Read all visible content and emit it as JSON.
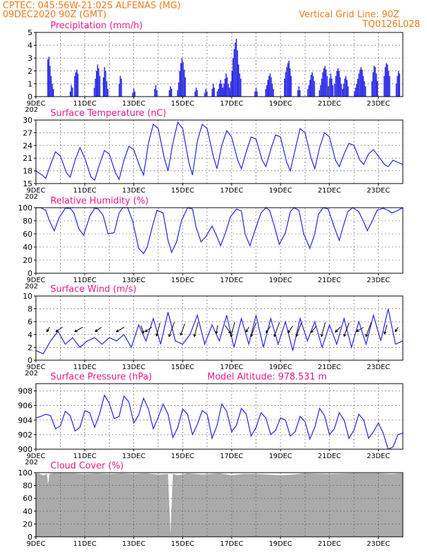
{
  "header": {
    "line1": "CPTEC:   045:56W-21:02S  ALFENAS (MG)",
    "line2": "09DEC2020 90Z (GMT)",
    "grid_note": "Vertical Grid Line: 90Z",
    "code": "TQ0126L028"
  },
  "colors": {
    "header": "#f07a18",
    "title": "#e8188a",
    "series": "#3030e8",
    "cloud": "#aaaaaa"
  },
  "x_ticks": [
    "9DEC",
    "11DEC",
    "13DEC",
    "15DEC",
    "17DEC",
    "19DEC",
    "21DEC",
    "23DEC"
  ],
  "year_stub": "202",
  "chart_data": [
    {
      "type": "bar",
      "title": "Precipitation (mm/h)",
      "ylim": [
        0,
        5
      ],
      "yticks": [
        "0",
        "1",
        "2",
        "3",
        "4",
        "5"
      ],
      "grid": true,
      "x_range_days": [
        0,
        15
      ],
      "events": [
        {
          "t": 0.6,
          "values": [
            2.9,
            3.1,
            2.4,
            1.6,
            1.0,
            0.6
          ]
        },
        {
          "t": 1.45,
          "values": [
            0.4,
            0.9,
            0.7
          ]
        },
        {
          "t": 1.65,
          "values": [
            1.6,
            1.9,
            2.1,
            1.8
          ]
        },
        {
          "t": 2.5,
          "values": [
            0.7,
            1.4,
            2.0,
            2.5,
            2.2,
            1.6
          ]
        },
        {
          "t": 2.85,
          "values": [
            1.5,
            2.3,
            2.0,
            1.2,
            0.6
          ]
        },
        {
          "t": 3.45,
          "values": [
            1.0,
            1.6,
            1.4
          ]
        },
        {
          "t": 4.0,
          "values": [
            0.3,
            0.6,
            0.4
          ]
        },
        {
          "t": 4.9,
          "values": [
            0.6,
            0.9,
            0.5
          ]
        },
        {
          "t": 5.5,
          "values": [
            0.5,
            0.8,
            0.6
          ]
        },
        {
          "t": 5.95,
          "values": [
            0.5,
            1.1,
            2.0,
            2.6,
            3.0,
            2.7,
            2.1,
            1.5
          ]
        },
        {
          "t": 6.55,
          "values": [
            0.4,
            0.7,
            0.5
          ]
        },
        {
          "t": 6.95,
          "values": [
            0.3,
            0.6,
            0.4
          ]
        },
        {
          "t": 7.25,
          "values": [
            0.6,
            1.0,
            0.7
          ]
        },
        {
          "t": 7.55,
          "values": [
            0.4,
            0.6,
            1.0,
            1.3,
            1.0,
            0.7,
            0.5
          ]
        },
        {
          "t": 7.8,
          "values": [
            0.6,
            1.0,
            1.4,
            1.8,
            1.5,
            1.0,
            0.7,
            0.4
          ]
        },
        {
          "t": 8.15,
          "values": [
            0.6,
            1.2,
            2.0,
            3.0,
            3.7,
            4.2,
            4.5,
            3.6,
            2.5,
            1.8,
            1.4
          ]
        },
        {
          "t": 9.0,
          "values": [
            0.4,
            0.7,
            0.4
          ]
        },
        {
          "t": 9.55,
          "values": [
            0.6,
            0.9,
            1.3,
            1.6,
            1.8,
            1.5,
            1.0,
            0.6
          ]
        },
        {
          "t": 10.3,
          "values": [
            1.4,
            1.9,
            2.3,
            2.6,
            2.8,
            2.2,
            1.6
          ]
        },
        {
          "t": 10.75,
          "values": [
            0.5,
            0.8,
            0.5
          ]
        },
        {
          "t": 11.25,
          "values": [
            0.6,
            0.9,
            1.3,
            1.7,
            1.9,
            1.6,
            1.2
          ]
        },
        {
          "t": 11.75,
          "values": [
            0.5,
            0.9,
            1.4,
            1.9,
            2.2,
            2.4,
            2.1,
            1.6
          ]
        },
        {
          "t": 12.05,
          "values": [
            0.8,
            1.4,
            1.8,
            1.4,
            0.9
          ]
        },
        {
          "t": 12.35,
          "values": [
            1.0,
            1.6,
            2.0,
            2.2,
            2.0,
            1.5,
            1.0
          ]
        },
        {
          "t": 12.65,
          "values": [
            0.6,
            1.0,
            1.4,
            1.6,
            1.3,
            0.8
          ]
        },
        {
          "t": 13.25,
          "values": [
            0.4,
            0.7,
            1.0,
            1.4,
            1.8,
            2.1,
            2.3,
            2.1,
            1.6,
            1.2,
            0.8
          ]
        },
        {
          "t": 13.85,
          "values": [
            1.2,
            1.9,
            2.4,
            2.3,
            1.8,
            1.2
          ]
        },
        {
          "t": 14.35,
          "values": [
            1.6,
            2.3,
            2.6,
            2.5,
            2.0,
            1.6
          ]
        },
        {
          "t": 14.8,
          "values": [
            1.0,
            1.6,
            2.0,
            1.8
          ]
        }
      ]
    },
    {
      "type": "line",
      "title": "Surface Temperature (nC)",
      "ylim": [
        15,
        30
      ],
      "yticks": [
        "15",
        "18",
        "21",
        "24",
        "27",
        "30"
      ],
      "grid": true,
      "x": [
        0,
        0.25,
        0.4,
        0.6,
        0.8,
        1.0,
        1.25,
        1.4,
        1.6,
        1.8,
        2.0,
        2.25,
        2.4,
        2.6,
        2.8,
        3.0,
        3.25,
        3.4,
        3.6,
        3.8,
        4.0,
        4.25,
        4.4,
        4.6,
        4.8,
        5.0,
        5.25,
        5.4,
        5.6,
        5.8,
        6.0,
        6.25,
        6.4,
        6.6,
        6.8,
        7.0,
        7.25,
        7.4,
        7.6,
        7.8,
        8.0,
        8.25,
        8.4,
        8.6,
        8.8,
        9.0,
        9.25,
        9.4,
        9.6,
        9.8,
        10.0,
        10.25,
        10.4,
        10.6,
        10.8,
        11.0,
        11.25,
        11.4,
        11.6,
        11.8,
        12.0,
        12.25,
        12.4,
        12.6,
        12.8,
        13.0,
        13.25,
        13.4,
        13.6,
        13.8,
        14.0,
        14.25,
        14.4,
        14.6,
        14.8,
        15.0
      ],
      "values": [
        18.0,
        17.0,
        16.2,
        19.5,
        22.5,
        21.5,
        17.5,
        16.5,
        20.5,
        23.5,
        21.0,
        16.5,
        15.8,
        19.5,
        22.8,
        22.0,
        17.5,
        16.0,
        20.5,
        23.8,
        23.0,
        19.0,
        17.0,
        24.5,
        29.0,
        28.0,
        21.0,
        18.0,
        24.5,
        29.5,
        28.0,
        20.0,
        17.0,
        25.0,
        29.0,
        28.0,
        21.5,
        18.5,
        24.0,
        27.5,
        26.0,
        20.5,
        18.5,
        22.5,
        26.0,
        25.5,
        20.5,
        19.0,
        23.0,
        26.5,
        26.0,
        20.0,
        18.0,
        23.0,
        28.0,
        27.0,
        21.0,
        18.5,
        23.5,
        27.0,
        26.0,
        20.5,
        19.0,
        22.0,
        24.5,
        24.0,
        20.5,
        19.5,
        22.0,
        23.0,
        21.5,
        19.5,
        19.0,
        20.5,
        20.0,
        19.5
      ]
    },
    {
      "type": "line",
      "title": "Relative Humidity (%)",
      "ylim": [
        0,
        100
      ],
      "yticks": [
        "0",
        "20",
        "40",
        "60",
        "80",
        "100"
      ],
      "grid": true,
      "x": [
        0,
        0.2,
        0.4,
        0.55,
        0.75,
        0.95,
        1.2,
        1.4,
        1.55,
        1.75,
        1.95,
        2.2,
        2.4,
        2.55,
        2.75,
        2.95,
        3.2,
        3.4,
        3.55,
        3.75,
        3.95,
        4.2,
        4.4,
        4.55,
        4.75,
        4.95,
        5.2,
        5.4,
        5.55,
        5.75,
        5.95,
        6.2,
        6.4,
        6.55,
        6.75,
        6.95,
        7.2,
        7.4,
        7.55,
        7.75,
        7.95,
        8.2,
        8.4,
        8.55,
        8.75,
        8.95,
        9.2,
        9.4,
        9.55,
        9.75,
        9.95,
        10.2,
        10.4,
        10.55,
        10.75,
        10.95,
        11.2,
        11.4,
        11.55,
        11.75,
        11.95,
        12.2,
        12.4,
        12.55,
        12.75,
        12.95,
        13.2,
        13.4,
        13.55,
        13.75,
        13.95,
        14.2,
        14.4,
        14.55,
        14.75,
        15.0
      ],
      "values": [
        100,
        100,
        96,
        80,
        65,
        85,
        99,
        99,
        92,
        68,
        58,
        87,
        99,
        98,
        88,
        60,
        62,
        92,
        100,
        100,
        80,
        38,
        30,
        40,
        70,
        96,
        92,
        50,
        32,
        48,
        80,
        100,
        98,
        70,
        48,
        56,
        72,
        56,
        42,
        62,
        86,
        98,
        95,
        60,
        42,
        65,
        92,
        100,
        96,
        72,
        44,
        62,
        94,
        100,
        96,
        60,
        38,
        60,
        90,
        100,
        98,
        70,
        50,
        70,
        94,
        100,
        94,
        78,
        65,
        80,
        96,
        99,
        96,
        92,
        95,
        100
      ]
    },
    {
      "type": "line",
      "title": "Surface Wind (m/s)",
      "ylim": [
        0,
        10
      ],
      "yticks": [
        "0",
        "2",
        "4",
        "6",
        "8",
        "10"
      ],
      "grid": true,
      "x": [
        0,
        0.3,
        0.6,
        0.9,
        1.2,
        1.5,
        1.8,
        2.1,
        2.4,
        2.7,
        3.0,
        3.3,
        3.6,
        3.9,
        4.2,
        4.5,
        4.8,
        5.1,
        5.4,
        5.7,
        6.0,
        6.3,
        6.6,
        6.9,
        7.2,
        7.5,
        7.8,
        8.1,
        8.4,
        8.7,
        9.0,
        9.3,
        9.6,
        9.9,
        10.2,
        10.5,
        10.8,
        11.1,
        11.4,
        11.7,
        12.0,
        12.3,
        12.6,
        12.9,
        13.2,
        13.5,
        13.8,
        14.1,
        14.4,
        14.7,
        15.0
      ],
      "values": [
        1.5,
        1.0,
        3.0,
        4.5,
        2.5,
        3.5,
        2.0,
        3.0,
        3.5,
        2.5,
        3.5,
        3.0,
        4.0,
        2.0,
        5.5,
        3.0,
        6.5,
        2.5,
        7.5,
        3.0,
        2.5,
        4.0,
        7.0,
        2.5,
        5.5,
        3.0,
        7.0,
        2.0,
        6.5,
        2.5,
        7.0,
        2.0,
        6.5,
        2.5,
        6.0,
        1.5,
        6.5,
        3.0,
        6.0,
        2.0,
        5.5,
        2.5,
        6.5,
        2.0,
        6.0,
        2.5,
        7.0,
        3.0,
        8.0,
        2.5,
        3.0
      ],
      "arrows": [
        {
          "t": 0.5,
          "speed": 2.0,
          "dir_deg": 210
        },
        {
          "t": 0.95,
          "speed": 3.0,
          "dir_deg": 235
        },
        {
          "t": 1.75,
          "speed": 3.4,
          "dir_deg": 240
        },
        {
          "t": 2.55,
          "speed": 2.8,
          "dir_deg": 235
        },
        {
          "t": 3.45,
          "speed": 3.4,
          "dir_deg": 240
        },
        {
          "t": 4.35,
          "speed": 3.0,
          "dir_deg": 160
        },
        {
          "t": 4.6,
          "speed": 3.0,
          "dir_deg": 235
        },
        {
          "t": 5.0,
          "speed": 5.0,
          "dir_deg": 195
        },
        {
          "t": 5.55,
          "speed": 5.6,
          "dir_deg": 200
        },
        {
          "t": 6.0,
          "speed": 4.5,
          "dir_deg": 200
        },
        {
          "t": 6.55,
          "speed": 5.4,
          "dir_deg": 195
        },
        {
          "t": 7.4,
          "speed": 3.2,
          "dir_deg": 190
        },
        {
          "t": 7.85,
          "speed": 3.6,
          "dir_deg": 145
        },
        {
          "t": 8.05,
          "speed": 5.5,
          "dir_deg": 195
        },
        {
          "t": 8.65,
          "speed": 2.2,
          "dir_deg": 210
        },
        {
          "t": 8.9,
          "speed": 5.5,
          "dir_deg": 200
        },
        {
          "t": 9.5,
          "speed": 3.0,
          "dir_deg": 215
        },
        {
          "t": 9.85,
          "speed": 5.6,
          "dir_deg": 200
        },
        {
          "t": 10.4,
          "speed": 3.0,
          "dir_deg": 215
        },
        {
          "t": 10.75,
          "speed": 5.5,
          "dir_deg": 200
        },
        {
          "t": 11.35,
          "speed": 3.0,
          "dir_deg": 220
        },
        {
          "t": 11.75,
          "speed": 5.4,
          "dir_deg": 195
        },
        {
          "t": 12.35,
          "speed": 2.8,
          "dir_deg": 225
        },
        {
          "t": 12.7,
          "speed": 5.4,
          "dir_deg": 200
        },
        {
          "t": 13.25,
          "speed": 3.0,
          "dir_deg": 240
        },
        {
          "t": 13.6,
          "speed": 5.6,
          "dir_deg": 200
        },
        {
          "t": 14.3,
          "speed": 3.5,
          "dir_deg": 195
        },
        {
          "t": 14.75,
          "speed": 2.0,
          "dir_deg": 215
        }
      ]
    },
    {
      "type": "line",
      "title": "Surface Pressure (hPa)",
      "subtitle": "Model Altitude: 978.531  m",
      "ylim": [
        900,
        909
      ],
      "yticks": [
        "900",
        "902",
        "904",
        "906",
        "908"
      ],
      "grid": true,
      "x": [
        0,
        0.2,
        0.4,
        0.6,
        0.8,
        1.0,
        1.2,
        1.4,
        1.6,
        1.8,
        2.0,
        2.2,
        2.4,
        2.6,
        2.8,
        3.0,
        3.2,
        3.4,
        3.6,
        3.8,
        4.0,
        4.2,
        4.4,
        4.6,
        4.8,
        5.0,
        5.2,
        5.4,
        5.6,
        5.8,
        6.0,
        6.2,
        6.4,
        6.6,
        6.8,
        7.0,
        7.2,
        7.4,
        7.6,
        7.8,
        8.0,
        8.2,
        8.4,
        8.6,
        8.8,
        9.0,
        9.2,
        9.4,
        9.6,
        9.8,
        10.0,
        10.2,
        10.4,
        10.6,
        10.8,
        11.0,
        11.2,
        11.4,
        11.6,
        11.8,
        12.0,
        12.2,
        12.4,
        12.6,
        12.8,
        13.0,
        13.2,
        13.4,
        13.6,
        13.8,
        14.0,
        14.2,
        14.4,
        14.6,
        14.8,
        15.0
      ],
      "values": [
        904.3,
        904.5,
        904.8,
        904.6,
        902.8,
        903.2,
        905.2,
        904.6,
        902.5,
        903.0,
        905.3,
        905.0,
        903.0,
        904.8,
        907.4,
        906.3,
        904.2,
        904.5,
        907.3,
        906.5,
        903.6,
        904.7,
        907.0,
        905.5,
        902.8,
        904.4,
        906.2,
        904.8,
        901.6,
        903.0,
        905.5,
        904.8,
        902.0,
        903.4,
        905.3,
        904.8,
        901.5,
        903.2,
        906.2,
        905.2,
        902.4,
        903.3,
        905.6,
        904.8,
        901.8,
        903.0,
        905.0,
        904.3,
        902.0,
        902.6,
        904.3,
        904.0,
        901.8,
        902.4,
        904.5,
        903.8,
        901.4,
        903.0,
        905.6,
        904.6,
        902.0,
        902.8,
        905.0,
        904.0,
        901.5,
        902.6,
        904.8,
        904.0,
        901.5,
        902.4,
        903.6,
        902.2,
        899.5,
        900.3,
        902.0,
        902.2
      ]
    },
    {
      "type": "area",
      "title": "Cloud Cover (%)",
      "ylim": [
        0,
        100
      ],
      "yticks": [
        "0",
        "20",
        "40",
        "60",
        "80",
        "100"
      ],
      "grid": true,
      "x": [
        0,
        0.1,
        0.3,
        0.45,
        0.5,
        0.55,
        0.7,
        1.0,
        1.5,
        2.0,
        2.5,
        3.0,
        3.5,
        4.0,
        4.5,
        5.0,
        5.4,
        5.5,
        5.6,
        5.8,
        6.2,
        6.8,
        7.5,
        8.0,
        8.5,
        9.0,
        10.0,
        10.5,
        11.0,
        12.0,
        13.0,
        14.0,
        14.5,
        15.0
      ],
      "values": [
        98,
        99,
        96,
        98,
        82,
        98,
        99,
        99,
        99,
        98,
        99,
        98,
        99,
        98,
        99,
        97,
        98,
        5,
        98,
        96,
        99,
        97,
        99,
        96,
        98,
        98,
        96,
        97,
        99,
        98,
        99,
        99,
        98,
        99
      ]
    }
  ]
}
